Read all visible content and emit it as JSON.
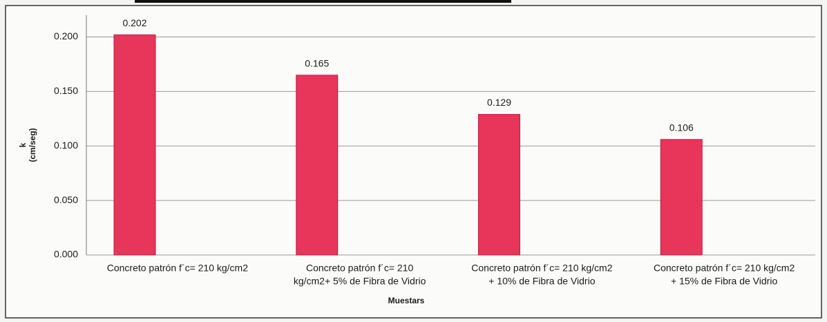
{
  "chart_data": {
    "type": "bar",
    "categories": [
      [
        "Concreto patrón f´c= 210 kg/cm2"
      ],
      [
        "Concreto patrón f´c= 210",
        "kg/cm2+ 5% de Fibra de Vidrio"
      ],
      [
        "Concreto patrón f´c= 210 kg/cm2",
        "+ 10% de Fibra de Vidrio"
      ],
      [
        "Concreto patrón f´c= 210 kg/cm2",
        "+ 15% de Fibra de Vidrio"
      ]
    ],
    "values": [
      0.202,
      0.165,
      0.129,
      0.106
    ],
    "color": "#e8355a",
    "ylim": [
      0,
      0.22
    ],
    "yticks": [
      {
        "value": 0,
        "label": "0.000"
      },
      {
        "value": 0.05,
        "label": "0.050"
      },
      {
        "value": 0.1,
        "label": "0.100"
      },
      {
        "value": 0.15,
        "label": "0.150"
      },
      {
        "value": 0.2,
        "label": "0.200"
      }
    ],
    "grid": true,
    "y_label": [
      "k",
      "(cm/seg)"
    ],
    "x_label": "Muestars"
  }
}
